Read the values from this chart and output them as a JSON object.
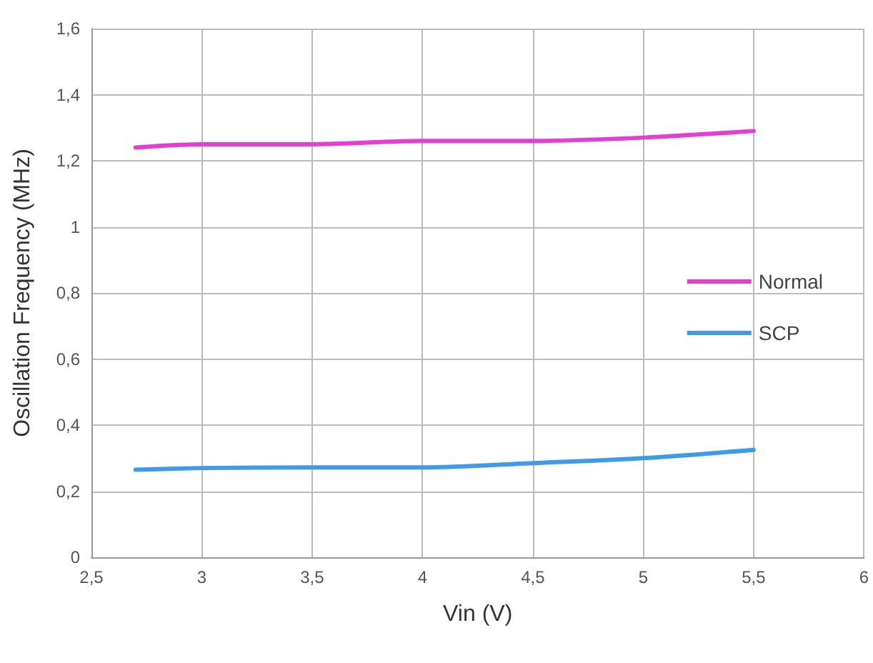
{
  "chart_data": {
    "type": "line",
    "xlabel": "Vin (V)",
    "ylabel": "Oscillation Frequency (MHz)",
    "x": [
      2.7,
      3,
      3.5,
      4,
      4.5,
      5,
      5.5
    ],
    "series": [
      {
        "name": "Normal",
        "color": "#e33fd2",
        "values": [
          1.24,
          1.25,
          1.25,
          1.26,
          1.26,
          1.27,
          1.29
        ]
      },
      {
        "name": "SCP",
        "color": "#3f9be8",
        "values": [
          0.265,
          0.27,
          0.272,
          0.272,
          0.285,
          0.3,
          0.325
        ]
      }
    ],
    "xlim": [
      2.5,
      6
    ],
    "xticks": [
      {
        "value": 2.5,
        "label": "2,5"
      },
      3,
      {
        "value": 3.5,
        "label": "3,5"
      },
      4,
      {
        "value": 4.5,
        "label": "4,5"
      },
      5,
      {
        "value": 5.5,
        "label": "5,5"
      },
      6
    ],
    "ylim": [
      0,
      1.6
    ],
    "yticks": [
      0,
      {
        "value": 0.2,
        "label": "0,2"
      },
      {
        "value": 0.4,
        "label": "0,4"
      },
      {
        "value": 0.6,
        "label": "0,6"
      },
      {
        "value": 0.8,
        "label": "0,8"
      },
      1,
      {
        "value": 1.2,
        "label": "1,2"
      },
      {
        "value": 1.4,
        "label": "1,4"
      },
      {
        "value": 1.6,
        "label": "1,6"
      }
    ],
    "grid": true,
    "legend": "right",
    "marker": "none",
    "line_style": "solid"
  }
}
